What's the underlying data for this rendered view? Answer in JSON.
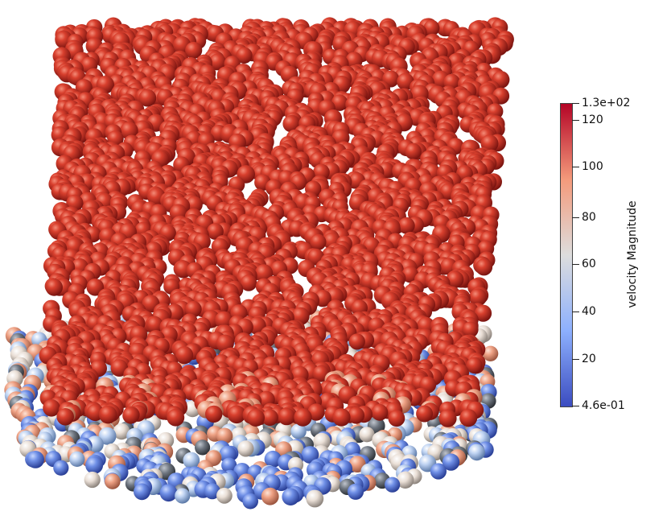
{
  "colorbar": {
    "title": "velocity Magnitude",
    "range": [
      0.46,
      130
    ],
    "max_label": "1.3e+02",
    "min_label": "4.6e-01",
    "ticks": [
      {
        "value": 120,
        "label": "120"
      },
      {
        "value": 100,
        "label": "100"
      },
      {
        "value": 80,
        "label": "80"
      },
      {
        "value": 60,
        "label": "60"
      },
      {
        "value": 40,
        "label": "40"
      },
      {
        "value": 20,
        "label": "20"
      }
    ],
    "colormap": [
      "#3b4cc0",
      "#8db0fe",
      "#dddddd",
      "#f49a7b",
      "#b40426"
    ]
  }
}
